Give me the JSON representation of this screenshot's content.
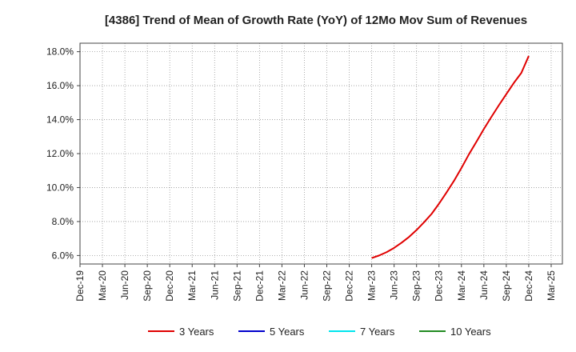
{
  "chart_data": {
    "type": "line",
    "title": "[4386]  Trend of Mean of Growth Rate (YoY) of 12Mo Mov Sum of Revenues",
    "xlabel": "",
    "ylabel": "",
    "categories": [
      "Dec-19",
      "Mar-20",
      "Jun-20",
      "Sep-20",
      "Dec-20",
      "Mar-21",
      "Jun-21",
      "Sep-21",
      "Dec-21",
      "Mar-22",
      "Jun-22",
      "Sep-22",
      "Dec-22",
      "Mar-23",
      "Jun-23",
      "Sep-23",
      "Dec-23",
      "Mar-24",
      "Jun-24",
      "Sep-24",
      "Dec-24",
      "Mar-25"
    ],
    "ylim": [
      5.5,
      18.5
    ],
    "yticks": [
      6.0,
      8.0,
      10.0,
      12.0,
      14.0,
      16.0,
      18.0
    ],
    "ytick_labels": [
      "6.0%",
      "8.0%",
      "10.0%",
      "12.0%",
      "14.0%",
      "16.0%",
      "18.0%"
    ],
    "grid": true,
    "legend_position": "bottom",
    "series": [
      {
        "name": "3 Years",
        "color": "#e00000",
        "x": [
          13.0,
          13.33,
          13.67,
          14.0,
          14.33,
          14.67,
          15.0,
          15.33,
          15.67,
          16.0,
          16.33,
          16.67,
          17.0,
          17.33,
          17.67,
          18.0,
          18.33,
          18.67,
          19.0,
          19.33,
          19.67,
          20.0
        ],
        "values": [
          5.85,
          6.0,
          6.2,
          6.45,
          6.75,
          7.1,
          7.5,
          7.95,
          8.45,
          9.05,
          9.7,
          10.4,
          11.15,
          11.95,
          12.7,
          13.45,
          14.15,
          14.85,
          15.5,
          16.15,
          16.75,
          17.75
        ]
      },
      {
        "name": "5 Years",
        "color": "#0000cc",
        "x": [],
        "values": []
      },
      {
        "name": "7 Years",
        "color": "#00e5ee",
        "x": [],
        "values": []
      },
      {
        "name": "10 Years",
        "color": "#228b22",
        "x": [],
        "values": []
      }
    ]
  }
}
